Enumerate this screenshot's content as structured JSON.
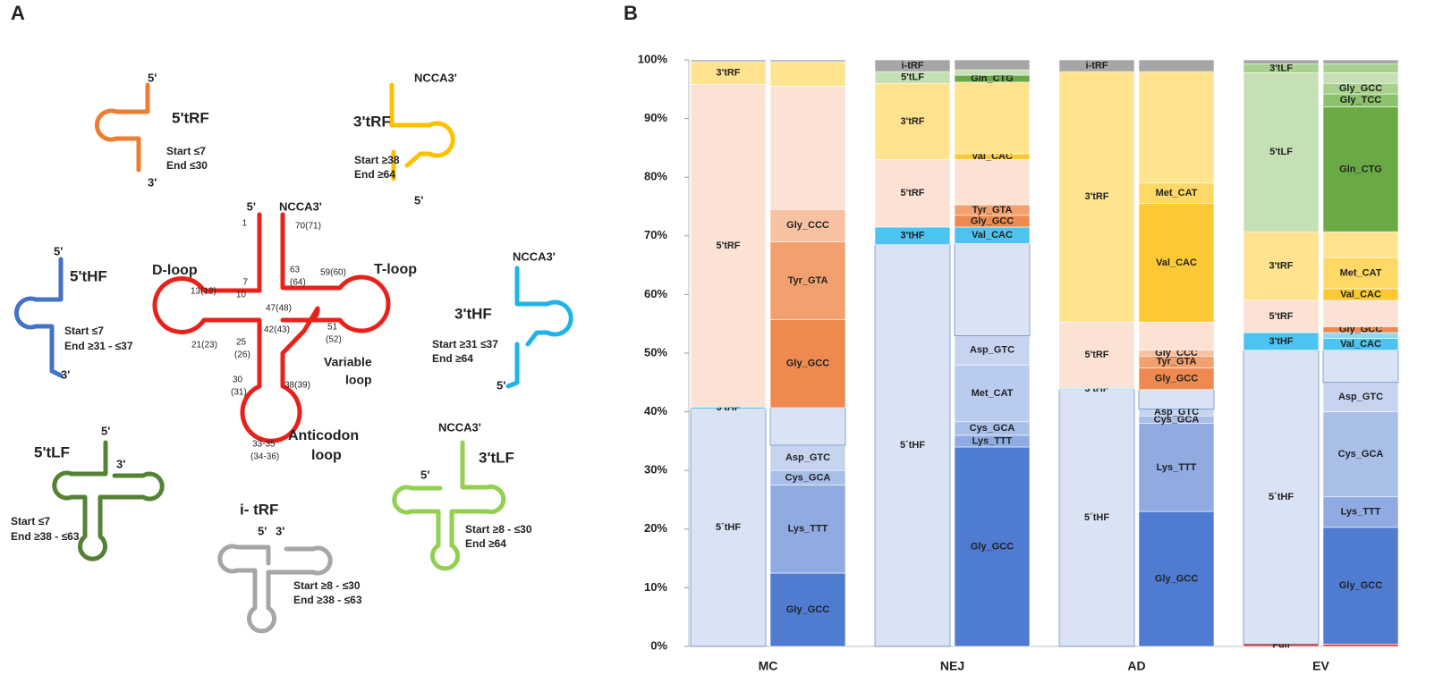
{
  "diagram": {
    "panel_label": "A",
    "structures": [
      {
        "name": "5'tRF",
        "labels": [
          "5'",
          "5'tRF",
          "Start  ≤7",
          "End ≤30",
          "3'"
        ]
      },
      {
        "name": "3'tRF",
        "labels": [
          "NCCA3'",
          "3'tRF",
          "Start  ≥38",
          "End ≥64",
          "5'"
        ]
      },
      {
        "name": "tRNA",
        "labels": [
          "5'",
          "NCCA3'",
          "1",
          "70(71)",
          "D-loop",
          "7",
          "10",
          "13(12)",
          "63",
          "(64)",
          "59(60)",
          "T-loop",
          "47(48)",
          "51",
          "(52)",
          "42(43)",
          "21(23)",
          "25",
          "(26)",
          "Variable",
          "loop",
          "30",
          "(31)",
          "38(39)",
          "Anticodon",
          "loop",
          "33-35",
          "(34-36)"
        ]
      },
      {
        "name": "5'tHF",
        "labels": [
          "5'",
          "5'tHF",
          "Start  ≤7",
          "End ≥31 - ≤37",
          "3'"
        ]
      },
      {
        "name": "3'tHF",
        "labels": [
          "NCCA3'",
          "3'tHF",
          "Start  ≥31 ≤37",
          "End ≥64",
          "5'"
        ]
      },
      {
        "name": "5'tLF",
        "labels": [
          "5'",
          "3'",
          "5'tLF",
          "Start  ≤7",
          "End ≥38 - ≤63"
        ]
      },
      {
        "name": "i-tRF",
        "labels": [
          "i- tRF",
          "5'",
          "3'",
          "Start  ≥8 - ≤30",
          "End ≥38 - ≤63"
        ]
      },
      {
        "name": "3'tLF",
        "labels": [
          "NCCA3'",
          "5'",
          "3'tLF",
          "Start  ≥8 - ≤30",
          "End ≥64"
        ]
      }
    ]
  },
  "chart_data": {
    "type": "stacked_bar",
    "panel_label": "B",
    "categories": [
      "MC",
      "NEJ",
      "AD",
      "EV"
    ],
    "ylim": [
      0,
      100
    ],
    "yticks": [
      {
        "value": 0,
        "label": "0%"
      },
      {
        "value": 10,
        "label": "10%"
      },
      {
        "value": 20,
        "label": "20%"
      },
      {
        "value": 30,
        "label": "30%"
      },
      {
        "value": 40,
        "label": "40%"
      },
      {
        "value": 50,
        "label": "50%"
      },
      {
        "value": 60,
        "label": "60%"
      },
      {
        "value": 70,
        "label": "70%"
      },
      {
        "value": 80,
        "label": "80%"
      },
      {
        "value": 90,
        "label": "90%"
      },
      {
        "value": 100,
        "label": "100%"
      }
    ],
    "groups": [
      {
        "stacks": [
          [
            {
              "label": "5´tHF",
              "value": 40.5,
              "color": "#dae3f3"
            },
            {
              "label": "3'tHF",
              "value": 0.3,
              "color": "#4dc3f0"
            },
            {
              "label": "5'tRF",
              "value": 55,
              "color": "#fbe2d5"
            },
            {
              "label": "3'tRF",
              "value": 3.9,
              "color": "#ffe38f"
            },
            {
              "label": null,
              "value": 0.3,
              "color": "#a6a6a6"
            }
          ],
          [
            {
              "label": "Gly_GCC",
              "value": 12.5,
              "color": "#4f7bd0"
            },
            {
              "label": "Lys_TTT",
              "value": 15,
              "color": "#8fabe2"
            },
            {
              "label": "Cys_GCA",
              "value": 2.5,
              "color": "#a9bfe8"
            },
            {
              "label": "Asp_GTC",
              "value": 4.3,
              "color": "#c6d4f0"
            },
            {
              "label": null,
              "value": 6.4,
              "color": "#dae3f3"
            },
            {
              "label": "Gly_GCC",
              "value": 15,
              "color": "#ee8a4f"
            },
            {
              "label": "Tyr_GTA",
              "value": 13.3,
              "color": "#f2a06e"
            },
            {
              "label": "Gly_CCC",
              "value": 5.5,
              "color": "#f7c2a2"
            },
            {
              "label": null,
              "value": 21,
              "color": "#fbe2d5"
            },
            {
              "label": null,
              "value": 4.2,
              "color": "#ffe38f"
            },
            {
              "label": null,
              "value": 0.3,
              "color": "#a6a6a6"
            }
          ]
        ]
      },
      {
        "stacks": [
          [
            {
              "label": "5´tHF",
              "value": 68.5,
              "color": "#dae3f3"
            },
            {
              "label": "3'tHF",
              "value": 3,
              "color": "#4dc3f0"
            },
            {
              "label": "5'tRF",
              "value": 11.5,
              "color": "#fbe2d5"
            },
            {
              "label": "3'tRF",
              "value": 13,
              "color": "#ffe38f"
            },
            {
              "label": "5'tLF",
              "value": 2,
              "color": "#c5e0b4"
            },
            {
              "label": "i-tRF",
              "value": 2,
              "color": "#a6a6a6"
            }
          ],
          [
            {
              "label": "Gly_GCC",
              "value": 34,
              "color": "#4f7bd0"
            },
            {
              "label": "Lys_TTT",
              "value": 2,
              "color": "#8fabe2"
            },
            {
              "label": "Cys_GCA",
              "value": 2.3,
              "color": "#a9bfe8"
            },
            {
              "label": "Met_CAT",
              "value": 9.7,
              "color": "#b9cbee"
            },
            {
              "label": "Asp_GTC",
              "value": 5,
              "color": "#c6d4f0"
            },
            {
              "label": null,
              "value": 15.7,
              "color": "#dae3f3"
            },
            {
              "label": "Val_CAC",
              "value": 2.8,
              "color": "#4dc3f0"
            },
            {
              "label": "Gly_GCC",
              "value": 2,
              "color": "#ee8a4f"
            },
            {
              "label": "Tyr_GTA",
              "value": 1.8,
              "color": "#f2a06e"
            },
            {
              "label": null,
              "value": 7.7,
              "color": "#fbe2d5"
            },
            {
              "label": "Val_CAC",
              "value": 1,
              "color": "#fcc934"
            },
            {
              "label": null,
              "value": 12.2,
              "color": "#ffe38f"
            },
            {
              "label": "Gln_CTG",
              "value": 1.2,
              "color": "#6aaa45"
            },
            {
              "label": null,
              "value": 0.9,
              "color": "#c5e0b4"
            },
            {
              "label": null,
              "value": 1.7,
              "color": "#a6a6a6"
            }
          ]
        ]
      },
      {
        "stacks": [
          [
            {
              "label": "5´tHF",
              "value": 43.8,
              "color": "#dae3f3"
            },
            {
              "label": "3'tHF",
              "value": 0.2,
              "color": "#4dc3f0"
            },
            {
              "label": "5'tRF",
              "value": 11.3,
              "color": "#fbe2d5"
            },
            {
              "label": "3'tRF",
              "value": 42.7,
              "color": "#ffe38f"
            },
            {
              "label": "i-tRF",
              "value": 2,
              "color": "#a6a6a6"
            }
          ],
          [
            {
              "label": "Gly_GCC",
              "value": 23,
              "color": "#4f7bd0"
            },
            {
              "label": "Lys_TTT",
              "value": 15,
              "color": "#8fabe2"
            },
            {
              "label": "Cys_GCA",
              "value": 1.3,
              "color": "#a9bfe8"
            },
            {
              "label": "Asp_GTC",
              "value": 1.2,
              "color": "#c6d4f0"
            },
            {
              "label": null,
              "value": 3.3,
              "color": "#dae3f3"
            },
            {
              "label": "Gly_GCC",
              "value": 3.7,
              "color": "#ee8a4f"
            },
            {
              "label": "Tyr_GTA",
              "value": 2,
              "color": "#f2a06e"
            },
            {
              "label": "Gly_CCC",
              "value": 1,
              "color": "#f7c2a2"
            },
            {
              "label": null,
              "value": 4.8,
              "color": "#fbe2d5"
            },
            {
              "label": "Val_CAC",
              "value": 20.2,
              "color": "#fcc934"
            },
            {
              "label": "Met_CAT",
              "value": 3.5,
              "color": "#ffd966"
            },
            {
              "label": null,
              "value": 19,
              "color": "#ffe38f"
            },
            {
              "label": null,
              "value": 2,
              "color": "#a6a6a6"
            }
          ]
        ]
      },
      {
        "stacks": [
          [
            {
              "label": "Full",
              "value": 0.4,
              "color": "#e03c31"
            },
            {
              "label": "5´tHF",
              "value": 50.1,
              "color": "#dae3f3"
            },
            {
              "label": "3'tHF",
              "value": 3,
              "color": "#4dc3f0"
            },
            {
              "label": "5'tRF",
              "value": 5.5,
              "color": "#fbe2d5"
            },
            {
              "label": "3'tRF",
              "value": 11.7,
              "color": "#ffe38f"
            },
            {
              "label": "5'tLF",
              "value": 27.1,
              "color": "#c5e0b4"
            },
            {
              "label": "3'tLF",
              "value": 1.5,
              "color": "#a9d18e"
            },
            {
              "label": null,
              "value": 0.7,
              "color": "#a6a6a6"
            }
          ],
          [
            {
              "label": null,
              "value": 0.4,
              "color": "#e03c31"
            },
            {
              "label": "Gly_GCC",
              "value": 19.9,
              "color": "#4f7bd0"
            },
            {
              "label": "Lys_TTT",
              "value": 5.2,
              "color": "#8fabe2"
            },
            {
              "label": "Cys_GCA",
              "value": 14.5,
              "color": "#a9bfe8"
            },
            {
              "label": "Asp_GTC",
              "value": 5,
              "color": "#c6d4f0"
            },
            {
              "label": null,
              "value": 5.5,
              "color": "#dae3f3"
            },
            {
              "label": "Val_CAC",
              "value": 2,
              "color": "#4dc3f0"
            },
            {
              "label": null,
              "value": 1,
              "color": "#8fd8f5"
            },
            {
              "label": "Gly_GCC",
              "value": 1,
              "color": "#ee8a4f"
            },
            {
              "label": null,
              "value": 4.5,
              "color": "#fbe2d5"
            },
            {
              "label": "Val_CAC",
              "value": 2,
              "color": "#fcc934"
            },
            {
              "label": "Met_CAT",
              "value": 5.3,
              "color": "#ffd966"
            },
            {
              "label": null,
              "value": 4.4,
              "color": "#ffe38f"
            },
            {
              "label": "Gln_CTG",
              "value": 21.3,
              "color": "#6aaa45"
            },
            {
              "label": "Gly_TCC",
              "value": 2.2,
              "color": "#8cc26c"
            },
            {
              "label": "Gly_GCC",
              "value": 1.8,
              "color": "#a8d08d"
            },
            {
              "label": null,
              "value": 1.8,
              "color": "#c5e0b4"
            },
            {
              "label": null,
              "value": 1.5,
              "color": "#a9d18e"
            },
            {
              "label": null,
              "value": 0.7,
              "color": "#a6a6a6"
            }
          ]
        ]
      }
    ]
  }
}
